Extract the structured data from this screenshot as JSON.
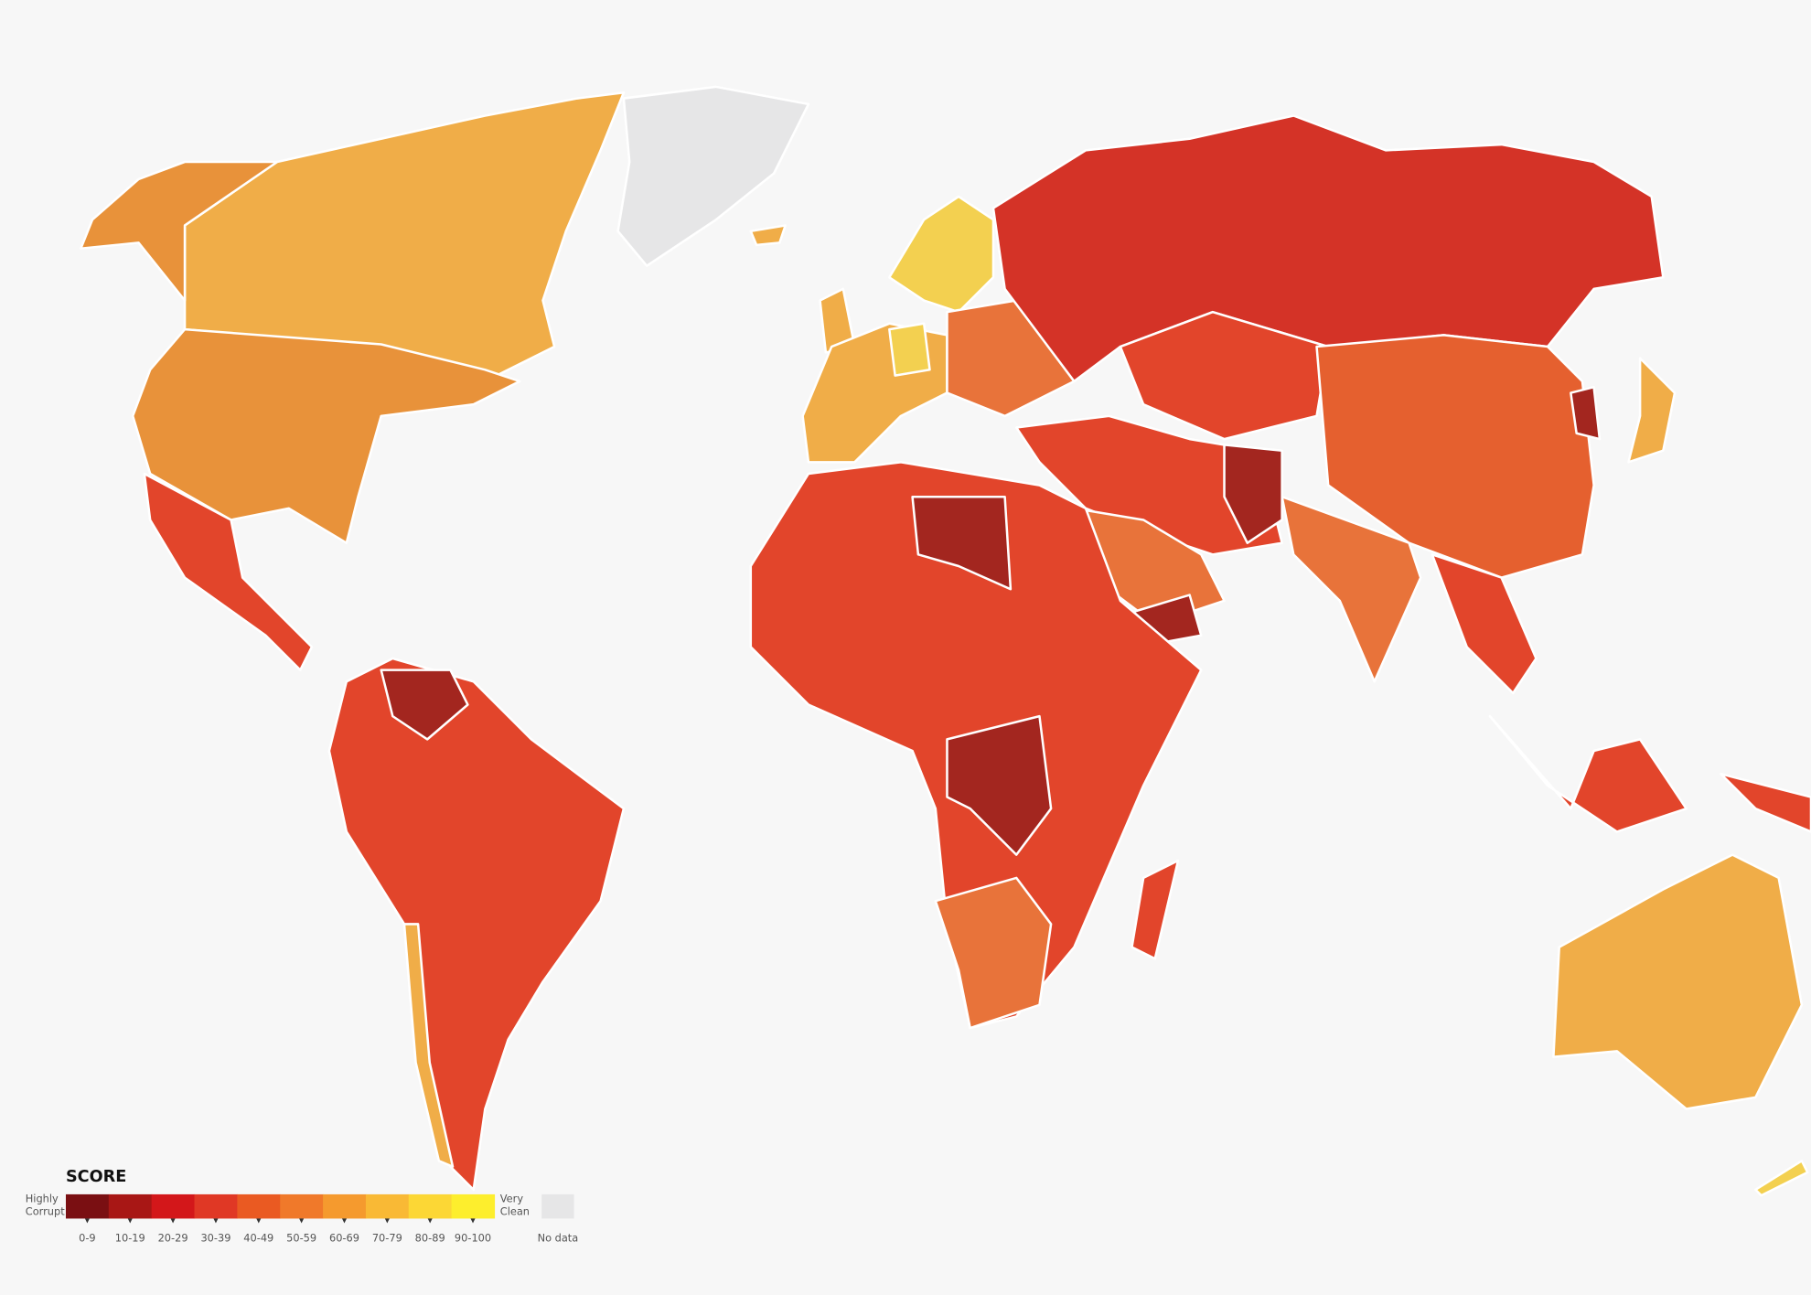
{
  "legend": {
    "title": "SCORE",
    "low_label": [
      "Highly",
      "Corrupt"
    ],
    "high_label": [
      "Very",
      "Clean"
    ],
    "bins": [
      {
        "label": "0-9",
        "color": "#7a0f12"
      },
      {
        "label": "10-19",
        "color": "#a81715"
      },
      {
        "label": "20-29",
        "color": "#d3171a"
      },
      {
        "label": "30-39",
        "color": "#e03825"
      },
      {
        "label": "40-49",
        "color": "#ea5a22"
      },
      {
        "label": "50-59",
        "color": "#f0792a"
      },
      {
        "label": "60-69",
        "color": "#f59a2e"
      },
      {
        "label": "70-79",
        "color": "#f9b935"
      },
      {
        "label": "80-89",
        "color": "#fcd735"
      },
      {
        "label": "90-100",
        "color": "#fdee2d"
      }
    ],
    "no_data": {
      "label": "No data",
      "color": "#e6e6e7"
    }
  }
}
